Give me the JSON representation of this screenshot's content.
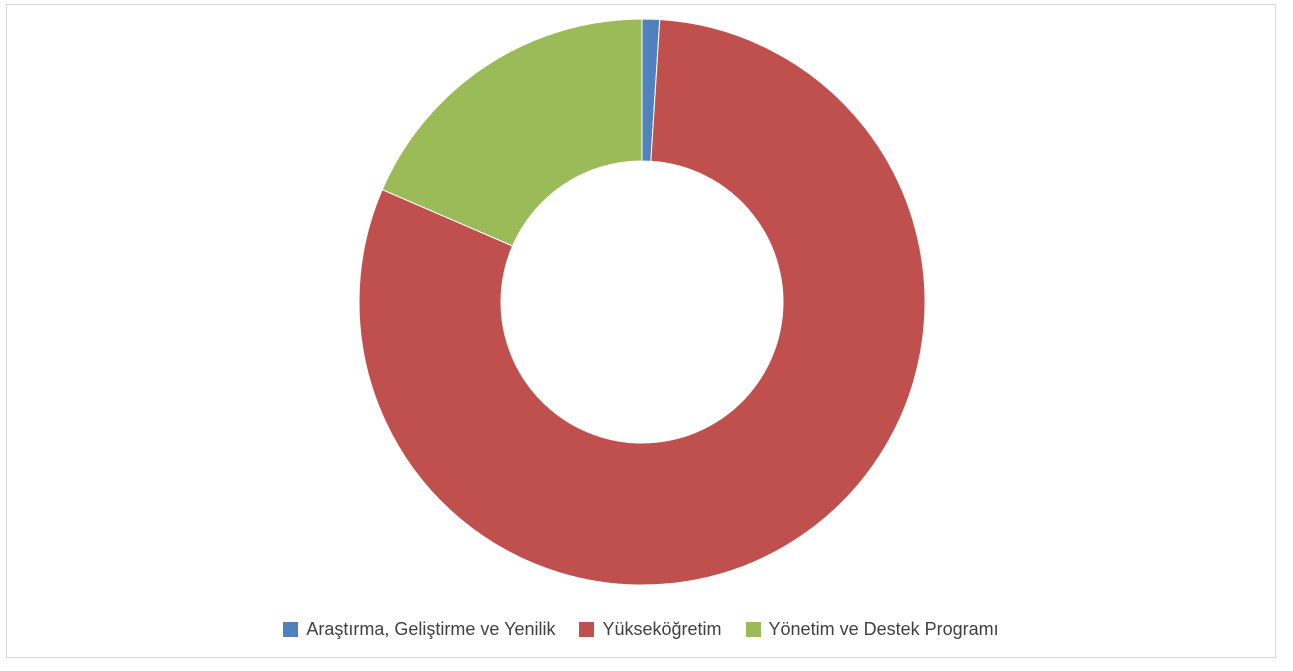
{
  "chart_data": {
    "type": "pie",
    "variant": "donut",
    "categories": [
      "Araştırma, Geliştirme ve Yenilik",
      "Yükseköğretim",
      "Yönetim ve Destek Programı"
    ],
    "values": [
      1.0,
      80.5,
      18.5
    ],
    "colors": [
      "#4f81bd",
      "#c0504d",
      "#9bbb59"
    ],
    "legend_position": "bottom"
  }
}
